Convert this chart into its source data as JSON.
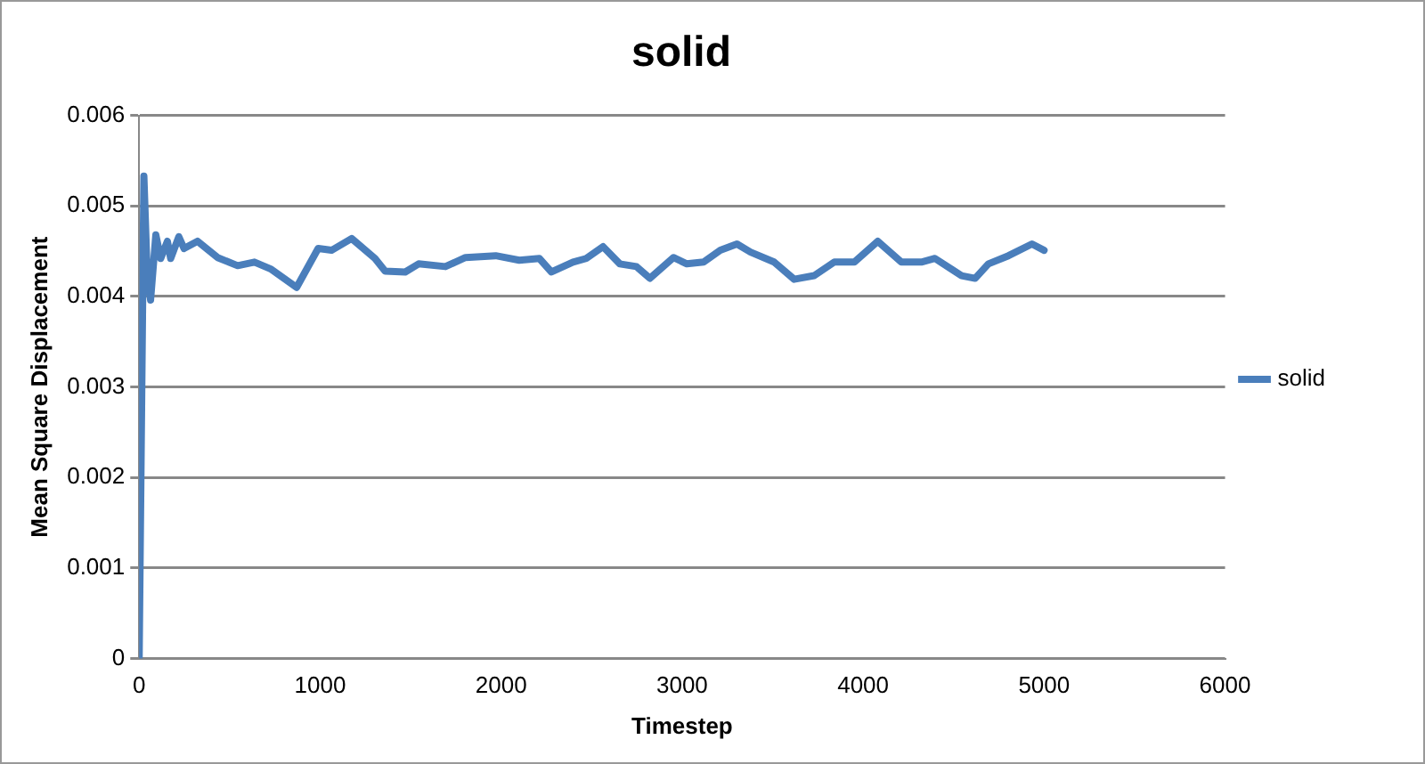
{
  "chart_data": {
    "type": "line",
    "title": "solid",
    "xlabel": "Timestep",
    "ylabel": "Mean Square Displacement",
    "xlim": [
      0,
      6000
    ],
    "xticks": [
      0,
      1000,
      2000,
      3000,
      4000,
      5000,
      6000
    ],
    "ylim": [
      0,
      0.006
    ],
    "yticks": [
      0,
      0.001,
      0.002,
      0.003,
      0.004,
      0.005,
      0.006
    ],
    "grid": "y",
    "legend": "right",
    "marker": "none",
    "line_style": "solid",
    "series": [
      {
        "name": "solid",
        "color": "#4a7ebb",
        "x": [
          0,
          26,
          44,
          63,
          92,
          119,
          156,
          174,
          219,
          248,
          322,
          433,
          544,
          637,
          730,
          870,
          989,
          1063,
          1174,
          1303,
          1359,
          1470,
          1544,
          1692,
          1803,
          1970,
          2100,
          2211,
          2278,
          2397,
          2470,
          2563,
          2656,
          2748,
          2822,
          2952,
          3026,
          3119,
          3211,
          3303,
          3378,
          3508,
          3619,
          3730,
          3841,
          3952,
          4081,
          4211,
          4322,
          4397,
          4489,
          4544,
          4619,
          4692,
          4803,
          4933,
          5000
        ],
        "values": [
          0,
          0.00533,
          0.00427,
          0.00396,
          0.00468,
          0.00442,
          0.00461,
          0.00442,
          0.00466,
          0.00453,
          0.00461,
          0.00443,
          0.00434,
          0.00438,
          0.0043,
          0.0041,
          0.00453,
          0.00451,
          0.00464,
          0.00442,
          0.00428,
          0.00427,
          0.00436,
          0.00433,
          0.00443,
          0.00445,
          0.0044,
          0.00442,
          0.00427,
          0.00438,
          0.00442,
          0.00455,
          0.00436,
          0.00433,
          0.0042,
          0.00443,
          0.00436,
          0.00438,
          0.00451,
          0.00458,
          0.00449,
          0.00438,
          0.00419,
          0.00423,
          0.00438,
          0.00438,
          0.00461,
          0.00438,
          0.00438,
          0.00442,
          0.0043,
          0.00423,
          0.0042,
          0.00436,
          0.00445,
          0.00458,
          0.00451
        ]
      }
    ]
  }
}
